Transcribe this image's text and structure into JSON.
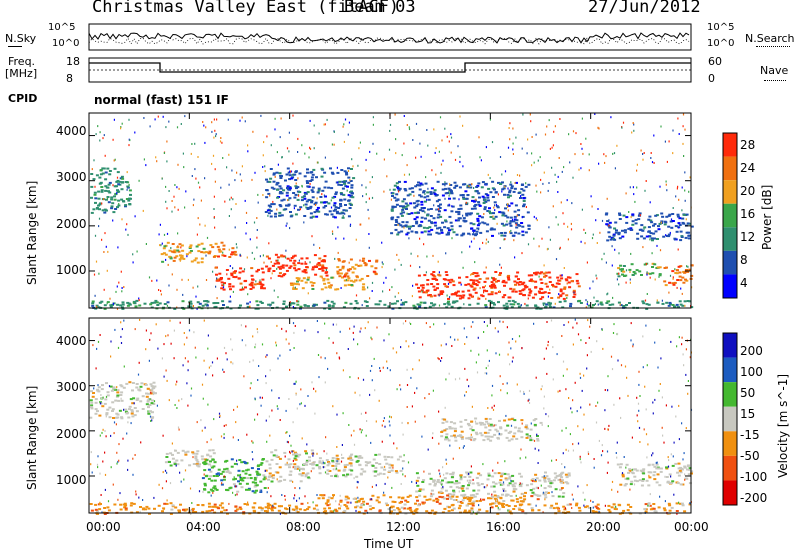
{
  "header": {
    "station": "Christmas Valley East (fitACF)",
    "beam": "Beam 03",
    "date": "27/Jun/2012"
  },
  "top_panels": {
    "nsky_label": "N.Sky",
    "nsky_ticks": [
      "10^5",
      "10^0"
    ],
    "nsearch_label": "N.Search",
    "nsearch_ticks": [
      "10^5",
      "10^0"
    ],
    "freq_label": "Freq.",
    "freq_unit": "[MHz]",
    "freq_ticks": [
      "18",
      "8"
    ],
    "nave_label": "Nave",
    "nave_ticks": [
      "60",
      "0"
    ],
    "cpid_label": "CPID",
    "cpid_text": "normal (fast) 151 IF"
  },
  "x_axis": {
    "label": "Time UT",
    "ticks": [
      "00:00",
      "04:00",
      "08:00",
      "12:00",
      "16:00",
      "20:00",
      "00:00"
    ]
  },
  "colors": {
    "power": [
      "#0000ff",
      "#1f4fb0",
      "#2f8f6f",
      "#3aa64a",
      "#f0a020",
      "#f07010",
      "#ff2a0a"
    ],
    "velocity": [
      "#1010c0",
      "#1c5cc0",
      "#44b830",
      "#c8c8c0",
      "#f09010",
      "#f05010",
      "#e00000"
    ]
  },
  "chart_data": [
    {
      "type": "heatmap",
      "name": "power",
      "xlabel": "Time UT",
      "ylabel": "Slant Range [km]",
      "xlim": [
        0,
        24
      ],
      "ylim": [
        180,
        4500
      ],
      "yticks": [
        "4000",
        "3000",
        "2000",
        "1000"
      ],
      "colorbar": {
        "label": "Power [dB]",
        "ticks": [
          "28",
          "24",
          "20",
          "16",
          "12",
          "8",
          "4"
        ]
      },
      "regions": [
        {
          "t0": 0.0,
          "t1": 1.6,
          "r0": 2300,
          "r1": 3300,
          "level": 2
        },
        {
          "t0": 2.8,
          "t1": 4.6,
          "r0": 1200,
          "r1": 1650,
          "level": 4
        },
        {
          "t0": 4.6,
          "t1": 5.8,
          "r0": 1300,
          "r1": 1650,
          "level": 5
        },
        {
          "t0": 5.0,
          "t1": 7.0,
          "r0": 600,
          "r1": 1100,
          "level": 6
        },
        {
          "t0": 7.0,
          "t1": 9.5,
          "r0": 900,
          "r1": 1400,
          "level": 6
        },
        {
          "t0": 8.0,
          "t1": 11.0,
          "r0": 600,
          "r1": 900,
          "level": 4
        },
        {
          "t0": 9.8,
          "t1": 11.5,
          "r0": 900,
          "r1": 1300,
          "level": 5
        },
        {
          "t0": 13.0,
          "t1": 19.5,
          "r0": 400,
          "r1": 1000,
          "level": 6
        },
        {
          "t0": 21.0,
          "t1": 22.8,
          "r0": 900,
          "r1": 1200,
          "level": 3
        },
        {
          "t0": 22.8,
          "t1": 24.0,
          "r0": 700,
          "r1": 1150,
          "level": 5
        },
        {
          "t0": 7.0,
          "t1": 10.5,
          "r0": 2200,
          "r1": 3300,
          "level": 1
        },
        {
          "t0": 12.0,
          "t1": 17.5,
          "r0": 1800,
          "r1": 3000,
          "level": 1
        },
        {
          "t0": 20.5,
          "t1": 24.0,
          "r0": 1700,
          "r1": 2300,
          "level": 1
        },
        {
          "t0": 0.0,
          "t1": 24.0,
          "r0": 180,
          "r1": 360,
          "level": 2
        }
      ]
    },
    {
      "type": "heatmap",
      "name": "velocity",
      "xlabel": "Time UT",
      "ylabel": "Slant Range [km]",
      "xlim": [
        0,
        24
      ],
      "ylim": [
        180,
        4500
      ],
      "yticks": [
        "4000",
        "3000",
        "2000",
        "1000"
      ],
      "colorbar": {
        "label": "Velocity [m s^-1]",
        "ticks": [
          "200",
          "100",
          "50",
          "15",
          "-15",
          "-50",
          "-100",
          "-200"
        ]
      },
      "regions": [
        {
          "t0": 0.0,
          "t1": 2.6,
          "r0": 2300,
          "r1": 3100,
          "level": 3
        },
        {
          "t0": 3.0,
          "t1": 5.0,
          "r0": 1200,
          "r1": 1600,
          "level": 3
        },
        {
          "t0": 4.5,
          "t1": 7.0,
          "r0": 650,
          "r1": 1400,
          "level": 2
        },
        {
          "t0": 7.0,
          "t1": 9.0,
          "r0": 900,
          "r1": 1600,
          "level": 3
        },
        {
          "t0": 9.0,
          "t1": 12.5,
          "r0": 1000,
          "r1": 1500,
          "level": 3
        },
        {
          "t0": 13.0,
          "t1": 19.2,
          "r0": 550,
          "r1": 1100,
          "level": 3
        },
        {
          "t0": 21.0,
          "t1": 24.0,
          "r0": 800,
          "r1": 1300,
          "level": 3
        },
        {
          "t0": 0.0,
          "t1": 24.0,
          "r0": 180,
          "r1": 420,
          "level": 4
        },
        {
          "t0": 9.0,
          "t1": 18.0,
          "r0": 420,
          "r1": 600,
          "level": 4
        },
        {
          "t0": 14.0,
          "t1": 18.0,
          "r0": 1800,
          "r1": 2300,
          "level": 3
        }
      ]
    }
  ]
}
